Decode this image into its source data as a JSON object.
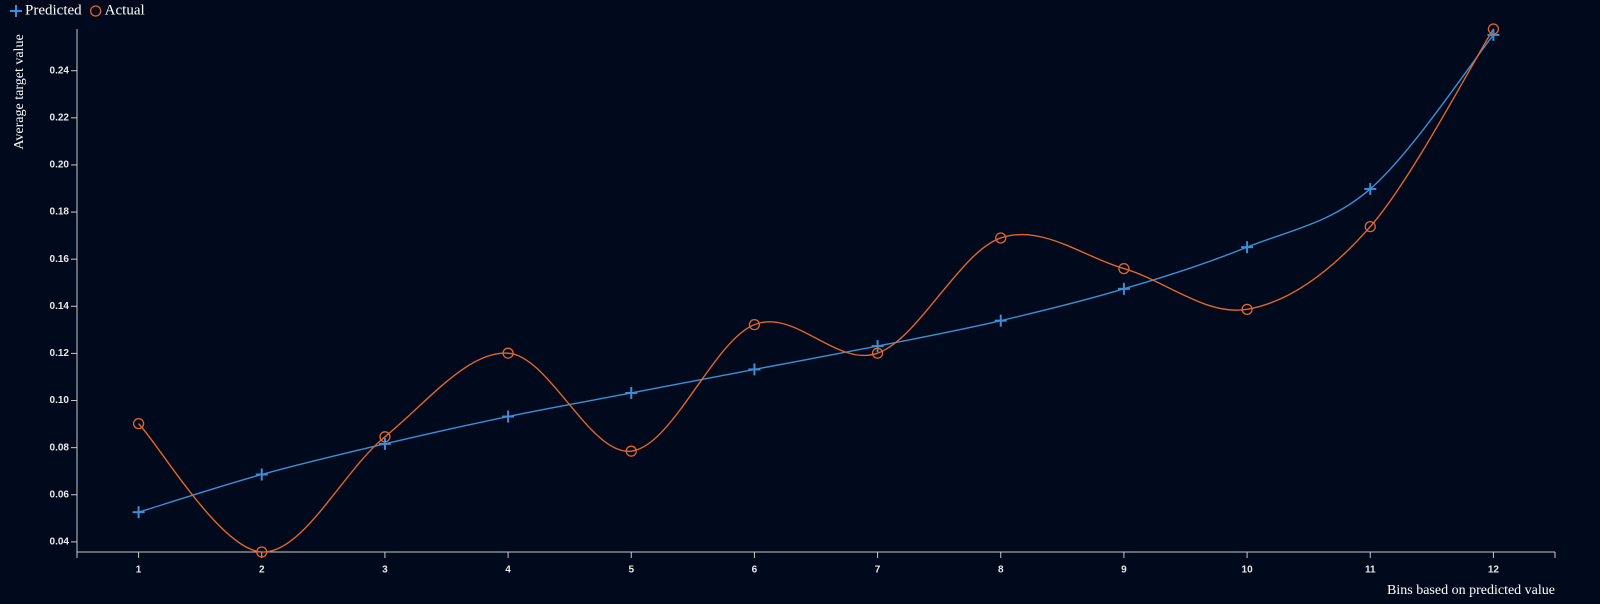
{
  "chart_data": {
    "type": "line",
    "x_label": "Bins based on predicted value",
    "y_label": "Average target value",
    "x": [
      1,
      2,
      3,
      4,
      5,
      6,
      7,
      8,
      9,
      10,
      11,
      12
    ],
    "series": [
      {
        "name": "Predicted",
        "color": "#3a8fd6",
        "marker": "plus",
        "values": [
          0.0526,
          0.0686,
          0.0816,
          0.0932,
          0.1032,
          0.1132,
          0.1231,
          0.1339,
          0.1474,
          0.1651,
          0.1898,
          0.2552
        ]
      },
      {
        "name": "Actual",
        "color": "#e0662a",
        "marker": "circle",
        "values": [
          0.0902,
          0.0357,
          0.0846,
          0.1201,
          0.0785,
          0.1322,
          0.1201,
          0.169,
          0.156,
          0.1387,
          0.1738,
          0.2577
        ]
      }
    ],
    "xlim": [
      0.5,
      12.5
    ],
    "ylim": [
      0.0357,
      0.2577
    ],
    "xticks": [
      1,
      2,
      3,
      4,
      5,
      6,
      7,
      8,
      9,
      10,
      11,
      12
    ],
    "yticks": [
      0.04,
      0.06,
      0.08,
      {
        "value": 0.1,
        "label": "0.10"
      },
      0.12,
      0.14,
      0.16,
      0.18,
      {
        "value": 0.2,
        "label": "0.20"
      },
      0.22,
      0.24
    ],
    "legend": "top-left",
    "grid": false,
    "smooth": true
  }
}
